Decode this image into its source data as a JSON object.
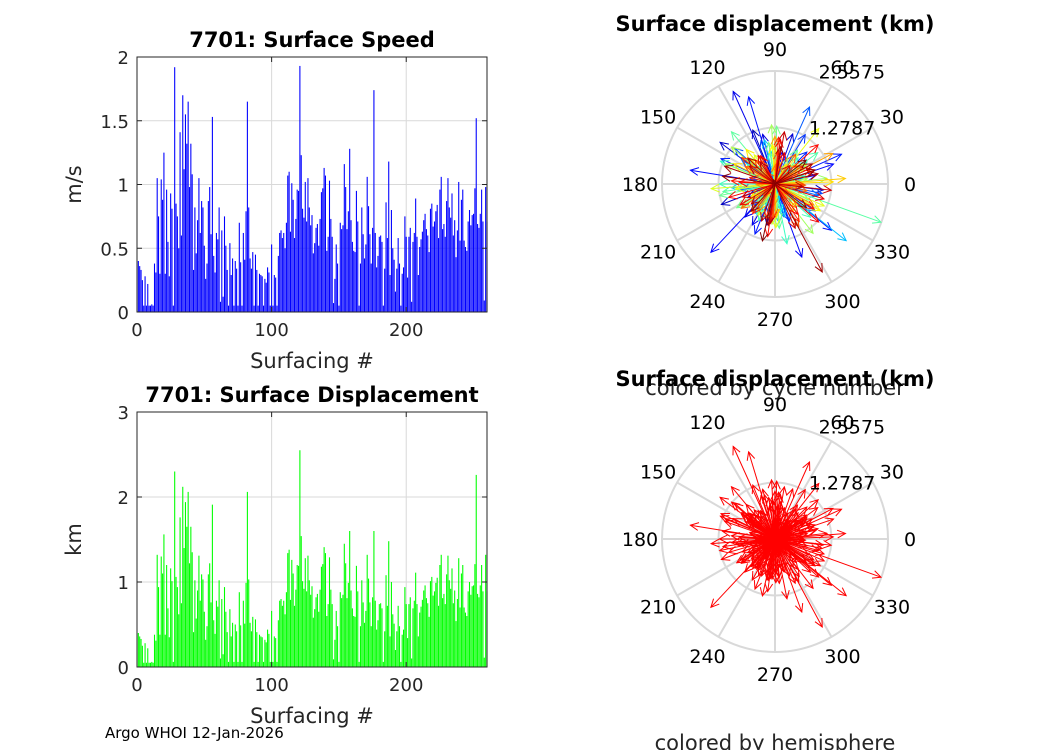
{
  "footer": "Argo WHOI 12-Jan-2026",
  "colors": {
    "speed_bars": "#0000ff",
    "displacement_bars": "#00ff00",
    "hemisphere_arrows": "#ff0000",
    "grid": "#d9d9d9",
    "axes": "#262626"
  },
  "chart_data": [
    {
      "type": "bar",
      "id": "speed",
      "title": "7701: Surface Speed",
      "xlabel": "Surfacing #",
      "ylabel": "m/s",
      "xlim": [
        0,
        260
      ],
      "ylim": [
        0,
        2
      ],
      "xticks": [
        0,
        100,
        200
      ],
      "yticks": [
        0,
        0.5,
        1,
        1.5,
        2
      ],
      "ytick_labels": [
        "0",
        "0.5",
        "1",
        "1.5",
        "2"
      ],
      "grid": true,
      "color": "#0000ff",
      "values": [
        0.4,
        0.36,
        0.33,
        0.25,
        0.05,
        0.28,
        0.05,
        0.22,
        0.05,
        0.05,
        0.06,
        0.05,
        0.38,
        0.31,
        1.05,
        0.75,
        0.3,
        1.04,
        0.88,
        1.25,
        0.3,
        0.96,
        0.55,
        0.28,
        0.93,
        0.81,
        0.05,
        1.92,
        0.85,
        0.75,
        0.5,
        1.41,
        0.6,
        1.7,
        1.12,
        1.55,
        1.32,
        1.65,
        0.98,
        1.32,
        1.08,
        0.33,
        0.82,
        0.46,
        0.72,
        1.05,
        0.62,
        0.87,
        0.82,
        0.52,
        0.26,
        0.38,
        0.87,
        0.98,
        0.61,
        1.53,
        0.44,
        0.31,
        0.62,
        0.57,
        0.82,
        0.08,
        0.64,
        0.12,
        0.75,
        0.52,
        0.33,
        0.05,
        0.54,
        0.29,
        0.42,
        0.05,
        0.4,
        0.34,
        0.05,
        0.7,
        0.39,
        0.05,
        0.62,
        0.41,
        0.79,
        1.65,
        0.82,
        0.42,
        0.34,
        0.47,
        0.05,
        0.45,
        0.33,
        0.05,
        0.3,
        0.29,
        0.28,
        0.05,
        0.26,
        0.23,
        0.35,
        0.31,
        0.05,
        0.53,
        0.05,
        0.29,
        0.27,
        0.05,
        0.44,
        0.62,
        0.64,
        0.58,
        0.62,
        0.5,
        0.7,
        1.07,
        1.1,
        0.63,
        1.01,
        0.88,
        0.58,
        0.73,
        0.96,
        0.95,
        1.93,
        1.23,
        0.81,
        0.74,
        1.02,
        0.71,
        1.05,
        0.82,
        0.68,
        0.76,
        0.46,
        0.54,
        0.66,
        0.69,
        0.52,
        0.73,
        0.94,
        0.97,
        1.13,
        1.07,
        0.48,
        0.59,
        1.03,
        0.73,
        0.59,
        0.07,
        0.26,
        0.53,
        0.38,
        0.05,
        0.7,
        0.65,
        0.68,
        1.16,
        0.98,
        0.65,
        0.79,
        1.28,
        0.72,
        0.55,
        0.48,
        0.47,
        0.95,
        0.71,
        0.05,
        0.38,
        0.82,
        0.61,
        0.42,
        0.53,
        1.06,
        0.83,
        0.61,
        0.38,
        0.66,
        1.74,
        0.62,
        0.35,
        0.44,
        0.59,
        0.6,
        0.55,
        0.05,
        0.34,
        0.86,
        0.58,
        1.18,
        0.29,
        0.8,
        0.5,
        0.41,
        0.16,
        0.34,
        0.58,
        0.38,
        0.05,
        0.3,
        0.35,
        0.75,
        0.59,
        0.27,
        0.59,
        0.66,
        0.08,
        0.55,
        0.62,
        0.89,
        0.59,
        0.29,
        0.51,
        0.57,
        0.63,
        0.72,
        0.77,
        0.65,
        0.6,
        0.47,
        0.81,
        0.85,
        0.67,
        0.71,
        0.79,
        0.84,
        0.58,
        0.96,
        1.06,
        0.65,
        0.69,
        0.59,
        0.87,
        1.05,
        0.82,
        0.74,
        0.93,
        0.6,
        0.72,
        0.43,
        0.64,
        1.02,
        0.56,
        0.88,
        0.96,
        0.56,
        0.51,
        0.48,
        0.71,
        0.8,
        0.68,
        0.76,
        0.77,
        0.97,
        1.52,
        0.69,
        0.66,
        0.77,
        0.96,
        0.71,
        0.09,
        0.98,
        0.71
      ]
    },
    {
      "type": "polar",
      "id": "polar_cycle",
      "title": "Surface displacement (km)",
      "caption": "colored by cycle number",
      "coloring": "cycle number (jet colormap)",
      "rlim": [
        0,
        2.5575
      ],
      "r_tick_labels": [
        "1.2787",
        "2.5575"
      ],
      "r_ticks": [
        1.2787,
        2.5575
      ],
      "theta_ticks": [
        0,
        30,
        60,
        90,
        120,
        150,
        180,
        210,
        240,
        270,
        300,
        330
      ],
      "theta_tick_labels": [
        "0",
        "30",
        "60",
        "90",
        "120",
        "150",
        "180",
        "210",
        "240",
        "270",
        "300",
        "330"
      ],
      "grid": true
    },
    {
      "type": "bar",
      "id": "displacement",
      "title": "7701: Surface Displacement",
      "xlabel": "Surfacing #",
      "ylabel": "km",
      "xlim": [
        0,
        260
      ],
      "ylim": [
        0,
        3
      ],
      "xticks": [
        0,
        100,
        200
      ],
      "yticks": [
        0,
        1,
        2,
        3
      ],
      "ytick_labels": [
        "0",
        "1",
        "2",
        "3"
      ],
      "grid": true,
      "color": "#00ff00",
      "values": [
        0.4,
        0.36,
        0.33,
        0.25,
        0.05,
        0.28,
        0.05,
        0.22,
        0.05,
        0.05,
        0.06,
        0.05,
        0.38,
        0.31,
        1.32,
        0.94,
        0.38,
        1.3,
        1.1,
        1.56,
        0.38,
        1.2,
        0.69,
        0.35,
        1.16,
        1.01,
        0.06,
        2.3,
        1.06,
        0.94,
        0.62,
        1.76,
        0.75,
        2.12,
        1.4,
        1.94,
        1.65,
        2.06,
        1.22,
        1.65,
        1.35,
        0.41,
        1.02,
        0.57,
        0.9,
        1.31,
        0.78,
        1.09,
        1.03,
        0.65,
        0.32,
        0.48,
        1.09,
        1.22,
        0.76,
        1.91,
        0.55,
        0.39,
        0.78,
        0.71,
        1.02,
        0.1,
        0.8,
        0.15,
        0.94,
        0.65,
        0.41,
        0.06,
        0.68,
        0.36,
        0.52,
        0.06,
        0.5,
        0.42,
        0.06,
        0.88,
        0.49,
        0.06,
        0.78,
        0.51,
        0.99,
        2.06,
        1.03,
        0.52,
        0.42,
        0.59,
        0.06,
        0.56,
        0.41,
        0.06,
        0.38,
        0.36,
        0.35,
        0.06,
        0.32,
        0.29,
        0.44,
        0.39,
        0.06,
        0.66,
        0.06,
        0.36,
        0.34,
        0.06,
        0.55,
        0.78,
        0.8,
        0.72,
        0.78,
        0.62,
        0.88,
        1.34,
        1.38,
        0.79,
        1.26,
        1.1,
        0.72,
        0.91,
        1.2,
        1.19,
        2.55,
        1.54,
        1.01,
        0.92,
        1.28,
        0.89,
        1.31,
        1.02,
        0.85,
        0.95,
        0.58,
        0.68,
        0.82,
        0.86,
        0.65,
        0.91,
        1.18,
        1.21,
        1.41,
        1.34,
        0.6,
        0.74,
        1.29,
        0.91,
        0.74,
        0.09,
        0.32,
        0.66,
        0.48,
        0.06,
        0.88,
        0.81,
        0.85,
        1.45,
        1.22,
        0.81,
        0.99,
        1.6,
        0.9,
        0.69,
        0.6,
        0.59,
        1.19,
        0.89,
        0.06,
        0.48,
        1.02,
        0.76,
        0.52,
        0.66,
        1.32,
        1.04,
        0.76,
        0.48,
        0.82,
        1.6,
        0.78,
        0.44,
        0.55,
        0.74,
        0.75,
        0.69,
        0.06,
        0.42,
        1.08,
        0.72,
        1.48,
        0.36,
        1.0,
        0.62,
        0.51,
        0.2,
        0.42,
        0.72,
        0.48,
        0.06,
        0.38,
        0.44,
        0.94,
        0.74,
        0.34,
        0.74,
        0.82,
        0.1,
        0.69,
        0.78,
        1.11,
        0.74,
        0.36,
        0.64,
        0.71,
        0.79,
        0.9,
        0.96,
        0.81,
        0.75,
        0.59,
        1.01,
        1.06,
        0.84,
        0.89,
        0.99,
        1.05,
        0.72,
        1.2,
        1.32,
        0.81,
        0.86,
        0.74,
        1.09,
        1.31,
        1.02,
        0.92,
        1.16,
        0.75,
        0.9,
        0.54,
        0.8,
        1.28,
        0.7,
        1.1,
        1.2,
        0.7,
        0.64,
        0.6,
        0.89,
        1.0,
        0.85,
        0.95,
        0.96,
        1.21,
        2.26,
        0.86,
        0.82,
        0.96,
        1.2,
        0.89,
        0.11,
        1.32,
        0.89
      ]
    },
    {
      "type": "polar",
      "id": "polar_hemi",
      "title": "Surface displacement (km)",
      "caption": "colored by hemisphere",
      "coloring": "hemisphere",
      "color": "#ff0000",
      "rlim": [
        0,
        2.5575
      ],
      "r_tick_labels": [
        "1.2787",
        "2.5575"
      ],
      "r_ticks": [
        1.2787,
        2.5575
      ],
      "theta_ticks": [
        0,
        30,
        60,
        90,
        120,
        150,
        180,
        210,
        240,
        270,
        300,
        330
      ],
      "theta_tick_labels": [
        "0",
        "30",
        "60",
        "90",
        "120",
        "150",
        "180",
        "210",
        "240",
        "270",
        "300",
        "330"
      ],
      "grid": true
    }
  ]
}
